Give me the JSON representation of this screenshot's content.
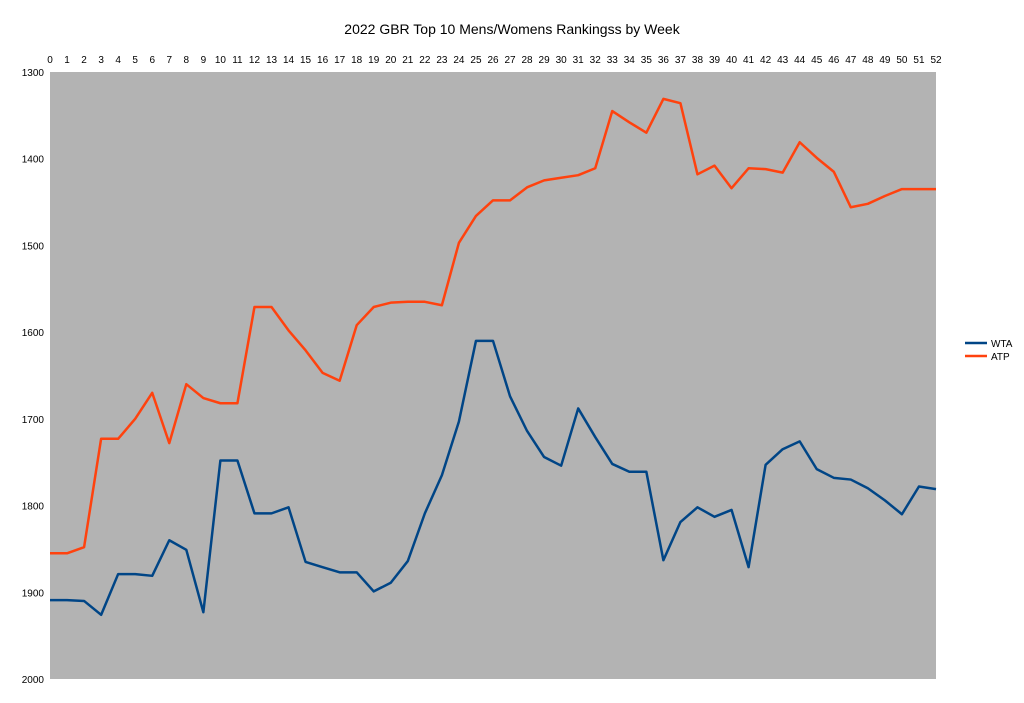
{
  "chart_data": {
    "type": "line",
    "title": "2022  GBR Top 10 Mens/Womens Rankingss by Week",
    "xlabel": "",
    "ylabel": "",
    "x": [
      0,
      1,
      2,
      3,
      4,
      5,
      6,
      7,
      8,
      9,
      10,
      11,
      12,
      13,
      14,
      15,
      16,
      17,
      18,
      19,
      20,
      21,
      22,
      23,
      24,
      25,
      26,
      27,
      28,
      29,
      30,
      31,
      32,
      33,
      34,
      35,
      36,
      37,
      38,
      39,
      40,
      41,
      42,
      43,
      44,
      45,
      46,
      47,
      48,
      49,
      50,
      51,
      52
    ],
    "xlim": [
      0,
      52
    ],
    "ylim": [
      1300,
      2000
    ],
    "y_inverted": true,
    "yticks": [
      1300,
      1400,
      1500,
      1600,
      1700,
      1800,
      1900,
      2000
    ],
    "x_axis_position": "top",
    "grid": false,
    "plot_background": "#b3b3b3",
    "legend_position": "right",
    "series": [
      {
        "name": "WTA",
        "color": "#004586",
        "values": [
          1909,
          1909,
          1910,
          1926,
          1879,
          1879,
          1881,
          1840,
          1851,
          1923,
          1748,
          1748,
          1809,
          1809,
          1802,
          1865,
          1871,
          1877,
          1877,
          1899,
          1889,
          1864,
          1809,
          1765,
          1703,
          1610,
          1610,
          1674,
          1714,
          1744,
          1754,
          1688,
          1721,
          1752,
          1761,
          1761,
          1863,
          1819,
          1802,
          1813,
          1805,
          1871,
          1753,
          1735,
          1726,
          1758,
          1768,
          1770,
          1780,
          1794,
          1810,
          1778,
          1781
        ]
      },
      {
        "name": "ATP",
        "color": "#ff420e",
        "values": [
          1855,
          1855,
          1848,
          1723,
          1723,
          1700,
          1670,
          1728,
          1660,
          1676,
          1682,
          1682,
          1571,
          1571,
          1598,
          1621,
          1647,
          1656,
          1592,
          1571,
          1566,
          1565,
          1565,
          1569,
          1497,
          1466,
          1448,
          1448,
          1433,
          1425,
          1422,
          1419,
          1411,
          1345,
          1358,
          1370,
          1331,
          1336,
          1418,
          1408,
          1434,
          1411,
          1412,
          1416,
          1381,
          1399,
          1415,
          1456,
          1452,
          1443,
          1435,
          1435,
          1435
        ]
      }
    ]
  }
}
